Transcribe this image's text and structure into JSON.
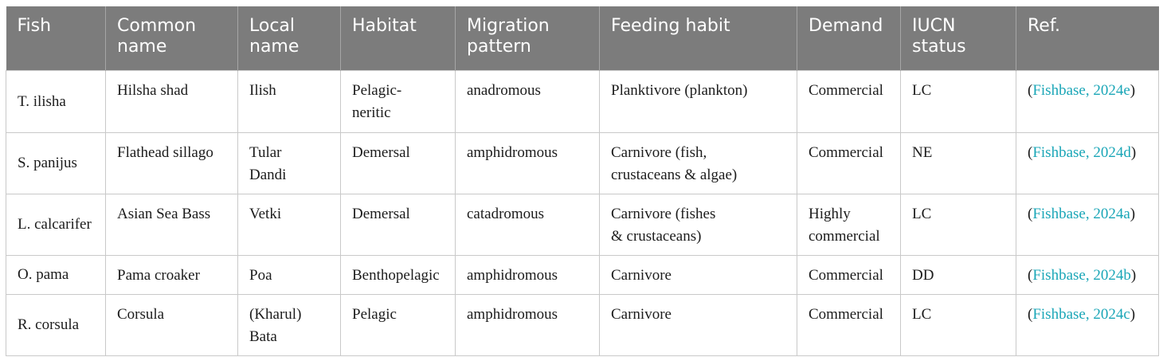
{
  "headers": [
    "Fish",
    "Common\nname",
    "Local\nname",
    "Habitat",
    "Migration\npattern",
    "Feeding habit",
    "Demand",
    "IUCN\nstatus",
    "Ref."
  ],
  "rows": [
    {
      "fish": "T. ilisha",
      "common": "Hilsha shad",
      "local": "Ilish",
      "habitat": "Pelagic-\nneritic",
      "migration": "anadromous",
      "feeding": "Planktivore (plankton)",
      "demand": "Commercial",
      "iucn": "LC",
      "ref": {
        "open": "(",
        "link": "Fishbase, 2024e",
        "close": ")"
      }
    },
    {
      "fish": "S. panijus",
      "common": "Flathead sillago",
      "local": "Tular\nDandi",
      "habitat": "Demersal",
      "migration": "amphidromous",
      "feeding": "Carnivore (fish,\ncrustaceans & algae)",
      "demand": "Commercial",
      "iucn": "NE",
      "ref": {
        "open": "(",
        "link": "Fishbase, 2024d",
        "close": ")"
      }
    },
    {
      "fish": "L. calcarifer",
      "common": "Asian Sea Bass",
      "local": "Vetki",
      "habitat": "Demersal",
      "migration": "catadromous",
      "feeding": "Carnivore (fishes\n& crustaceans)",
      "demand": "Highly\ncommercial",
      "iucn": "LC",
      "ref": {
        "open": "(",
        "link": "Fishbase, 2024a",
        "close": ")"
      }
    },
    {
      "fish": "O. pama",
      "common": "Pama croaker",
      "local": "Poa",
      "habitat": "Benthopelagic",
      "migration": "amphidromous",
      "feeding": "Carnivore",
      "demand": "Commercial",
      "iucn": "DD",
      "ref": {
        "open": "(",
        "link": "Fishbase, 2024b",
        "close": ")"
      }
    },
    {
      "fish": "R. corsula",
      "common": "Corsula",
      "local": "(Kharul)\nBata",
      "habitat": "Pelagic",
      "migration": "amphidromous",
      "feeding": "Carnivore",
      "demand": "Commercial",
      "iucn": "LC",
      "ref": {
        "open": "(",
        "link": "Fishbase, 2024c",
        "close": ")"
      }
    }
  ],
  "colors": {
    "header_bg": "#7c7c7c",
    "link": "#1aa6b7",
    "border": "#c9c9c9"
  }
}
